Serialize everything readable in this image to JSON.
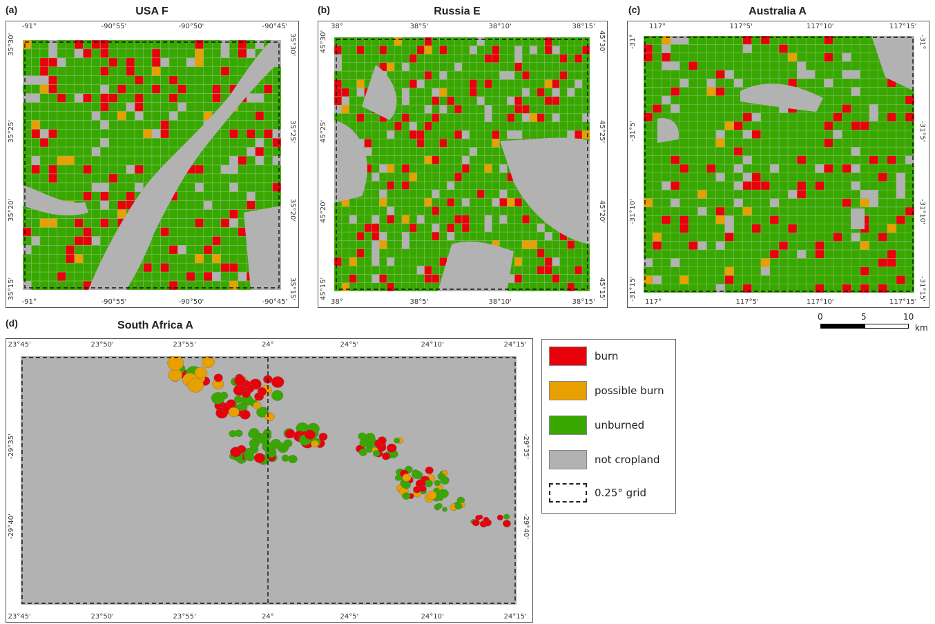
{
  "colors": {
    "burn": "#e8000b",
    "possible_burn": "#e8a000",
    "unburned": "#38a800",
    "not_cropland": "#b2b2b2",
    "field_line": "#8fbf78"
  },
  "panels": [
    {
      "id": "a",
      "letter": "(a)",
      "title": "USA F",
      "top_ticks": [
        "-91°",
        "-90°55'",
        "-90°50'",
        "-90°45'"
      ],
      "bottom_ticks": [
        "-91°",
        "-90°55'",
        "-90°50'",
        "-90°45'"
      ],
      "left_ticks": [
        "35°30'",
        "35°25'",
        "35°20'",
        "35°15'"
      ],
      "right_ticks": [
        "35°30'",
        "35°25'",
        "35°20'",
        "35°15'"
      ]
    },
    {
      "id": "b",
      "letter": "(b)",
      "title": "Russia E",
      "top_ticks": [
        "38°",
        "38°5'",
        "38°10'",
        "38°15'"
      ],
      "bottom_ticks": [
        "38°",
        "38°5'",
        "38°10'",
        "38°15'"
      ],
      "left_ticks": [
        "45°30'",
        "45°25'",
        "45°20'",
        "45°15'"
      ],
      "right_ticks": [
        "45°30'",
        "45°25'",
        "45°20'",
        "45°15'"
      ]
    },
    {
      "id": "c",
      "letter": "(c)",
      "title": "Australia A",
      "top_ticks": [
        "117°",
        "117°5'",
        "117°10'",
        "117°15'"
      ],
      "bottom_ticks": [
        "117°",
        "117°5'",
        "117°10'",
        "117°15'"
      ],
      "left_ticks": [
        "-31°",
        "-31°5'",
        "-31°10'",
        "-31°15'"
      ],
      "right_ticks": [
        "-31°",
        "-31°5'",
        "-31°10'",
        "-31°15'"
      ]
    },
    {
      "id": "d",
      "letter": "(d)",
      "title": "South Africa A",
      "top_ticks": [
        "23°45'",
        "23°50'",
        "23°55'",
        "24°",
        "24°5'",
        "24°10'",
        "24°15'"
      ],
      "bottom_ticks": [
        "23°45'",
        "23°50'",
        "23°55'",
        "24°",
        "24°5'",
        "24°10'",
        "24°15'"
      ],
      "left_ticks": [
        "-29°35'",
        "-29°40'"
      ],
      "right_ticks": [
        "-29°35'",
        "-29°40'"
      ]
    }
  ],
  "legend": [
    {
      "key": "burn",
      "label": "burn"
    },
    {
      "key": "possible_burn",
      "label": "possible burn"
    },
    {
      "key": "unburned",
      "label": "unburned"
    },
    {
      "key": "not_cropland",
      "label": "not cropland"
    },
    {
      "key": "grid",
      "label": "0.25° grid"
    }
  ],
  "scalebar": {
    "labels": [
      "0",
      "5",
      "10"
    ],
    "unit": "km"
  }
}
